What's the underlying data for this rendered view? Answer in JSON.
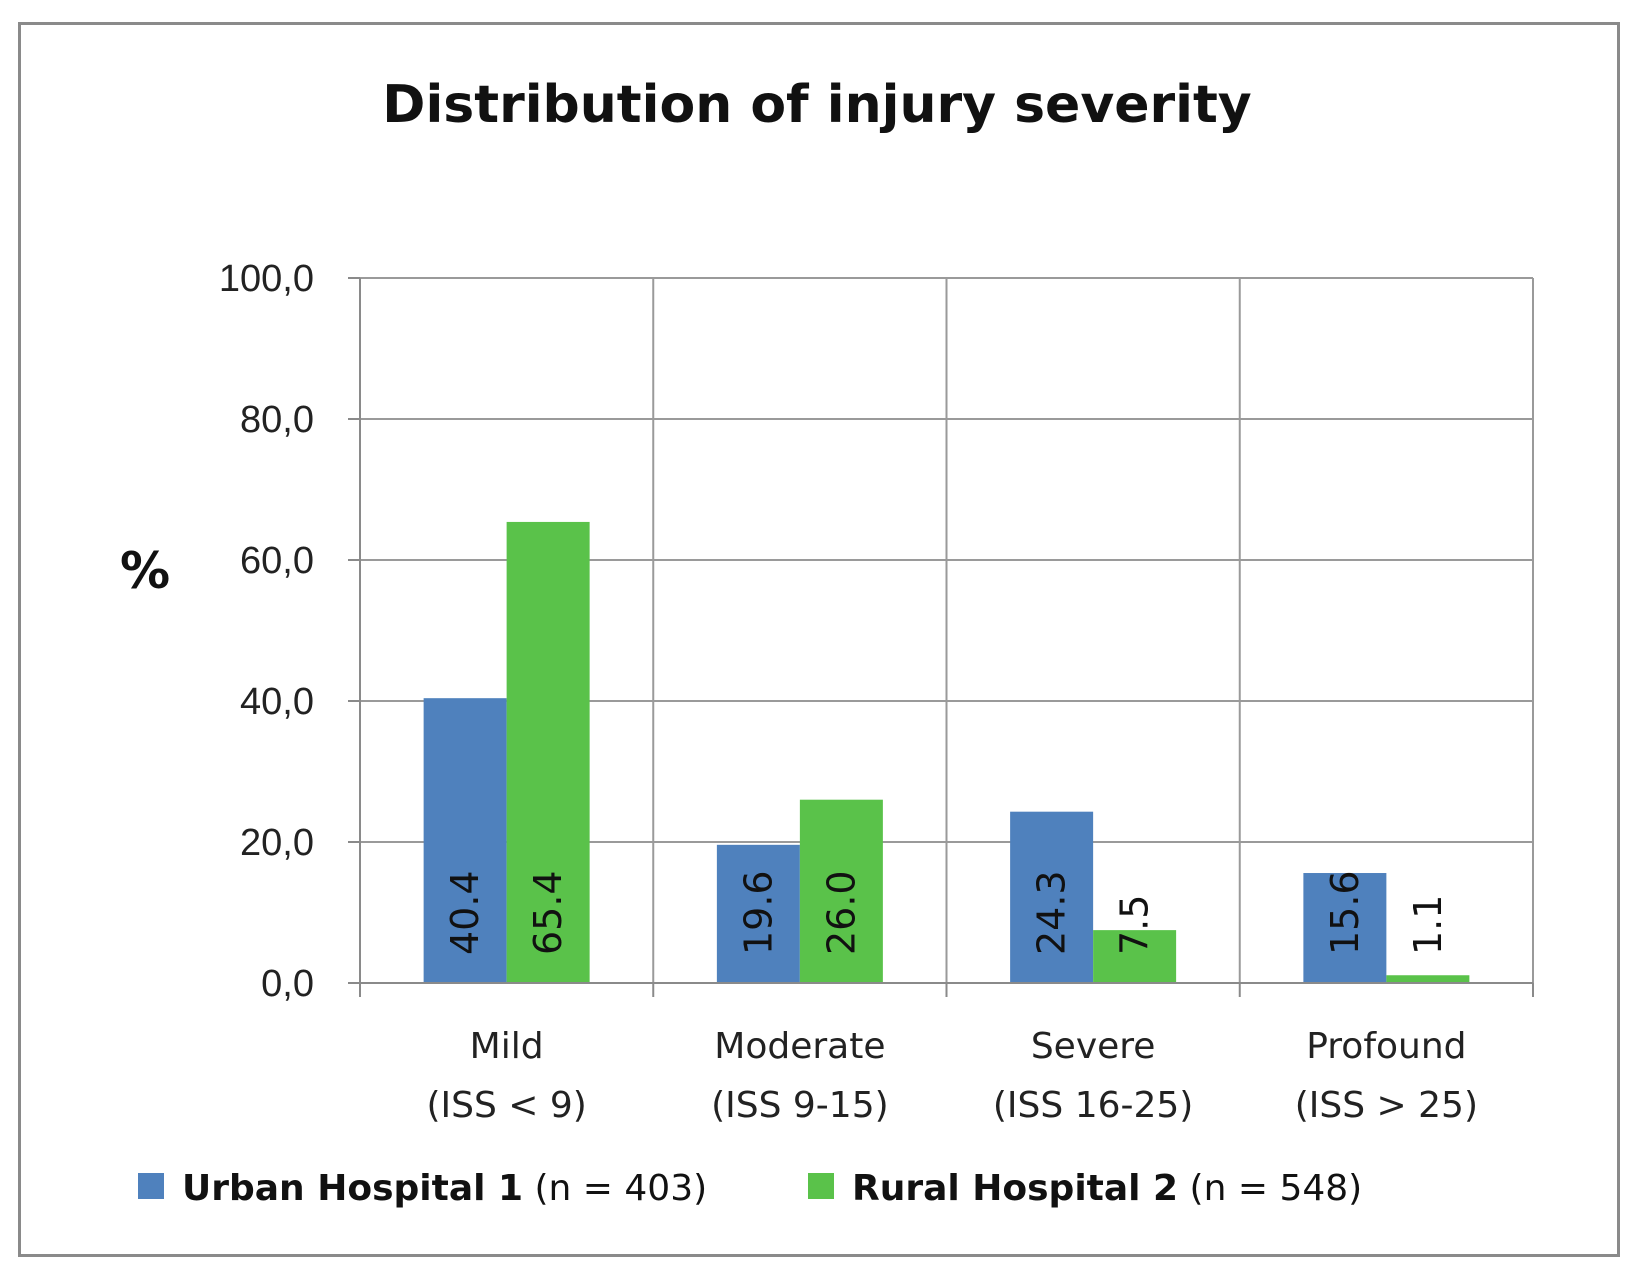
{
  "chart_data": {
    "type": "bar",
    "title": "Distribution of injury severity",
    "xlabel": "",
    "ylabel": "%",
    "ylim": [
      0,
      100
    ],
    "yticks": [
      "0,0",
      "20,0",
      "40,0",
      "60,0",
      "80,0",
      "100,0"
    ],
    "grid": true,
    "legend_position": "bottom",
    "categories": [
      {
        "line1": "Mild",
        "line2": "(ISS < 9)"
      },
      {
        "line1": "Moderate",
        "line2": "(ISS 9-15)"
      },
      {
        "line1": "Severe",
        "line2": "(ISS 16-25)"
      },
      {
        "line1": "Profound",
        "line2": "(ISS > 25)"
      }
    ],
    "series": [
      {
        "name": "Urban Hospital 1",
        "n_label": "(n = 403)",
        "color": "#4f81bd",
        "values": [
          40.4,
          19.6,
          24.3,
          15.6
        ],
        "value_labels": [
          "40.4",
          "19.6",
          "24.3",
          "15.6"
        ]
      },
      {
        "name": "Rural Hospital 2",
        "n_label": "(n = 548)",
        "color": "#5ac24a",
        "values": [
          65.4,
          26.0,
          7.5,
          1.1
        ],
        "value_labels": [
          "65.4",
          "26.0",
          "7.5",
          "1.1"
        ]
      }
    ]
  }
}
